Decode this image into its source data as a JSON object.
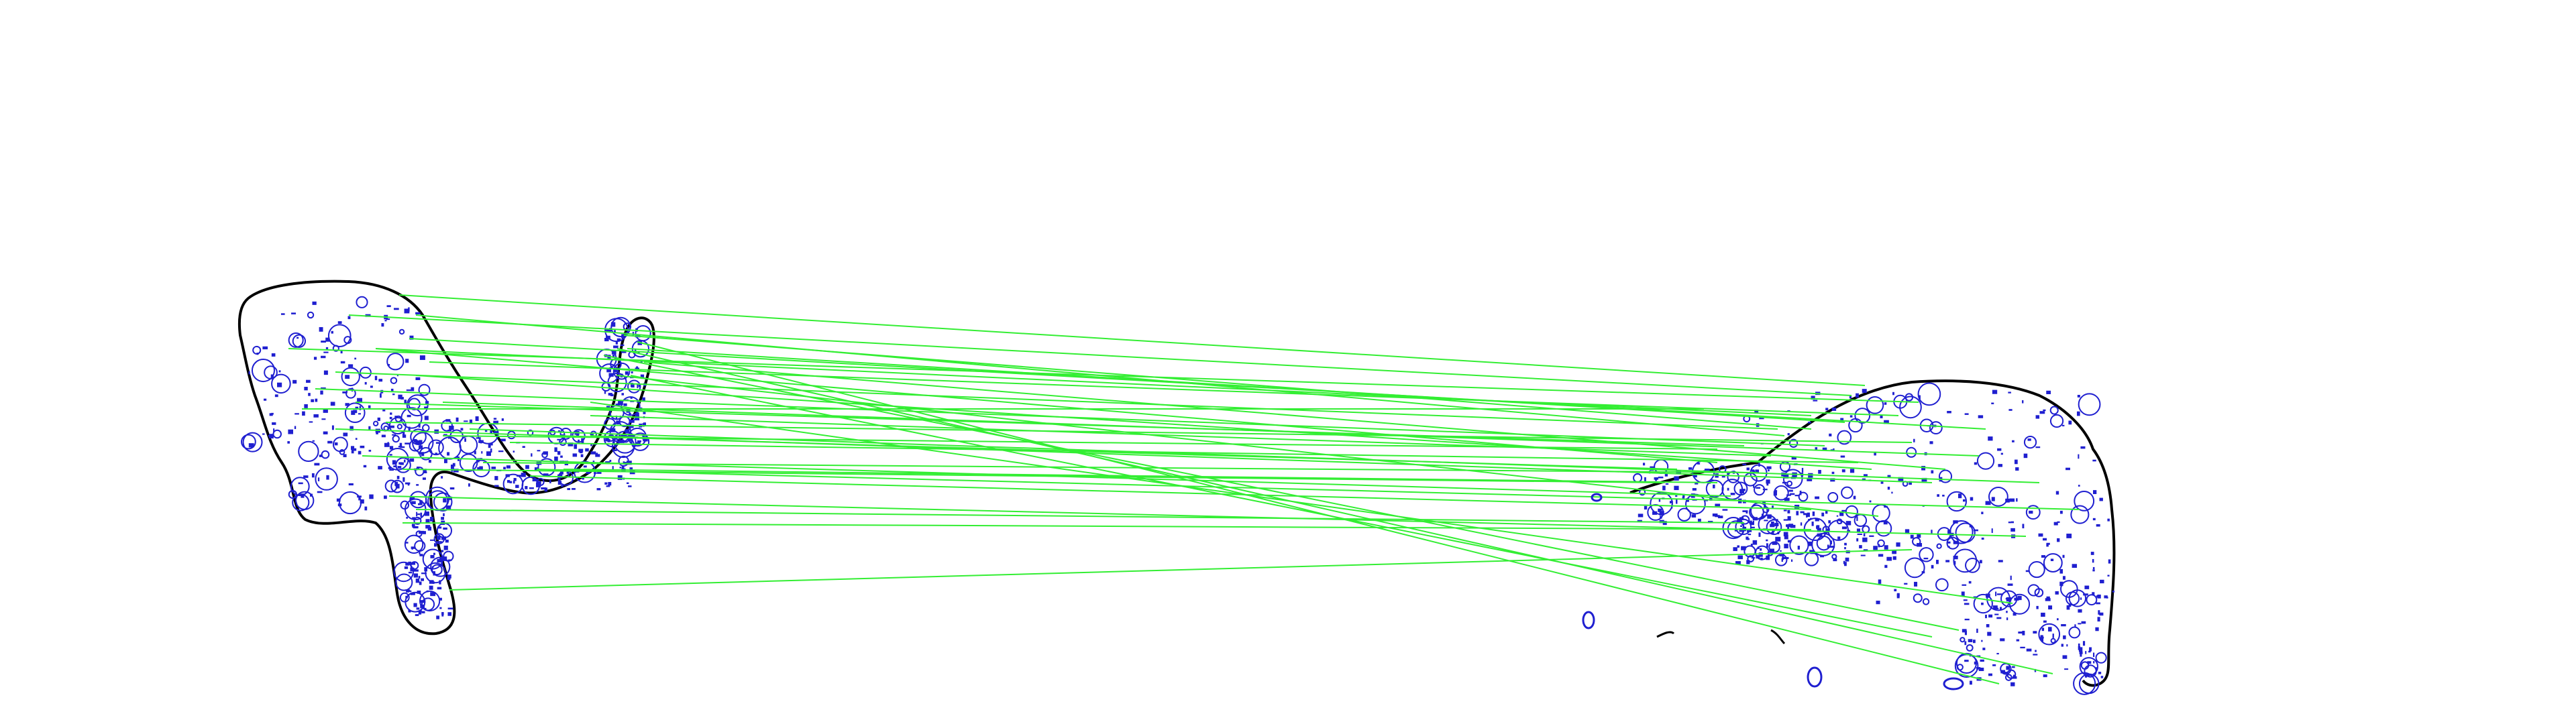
{
  "colors": {
    "background": "#ffffff",
    "outline": "#000000",
    "keypoint": "#1f1fd0",
    "match_line": "#33ee33"
  },
  "image": {
    "description_left": "silhouette-outline-with-keypoints",
    "description_right": "silhouette-outline-with-keypoints"
  }
}
